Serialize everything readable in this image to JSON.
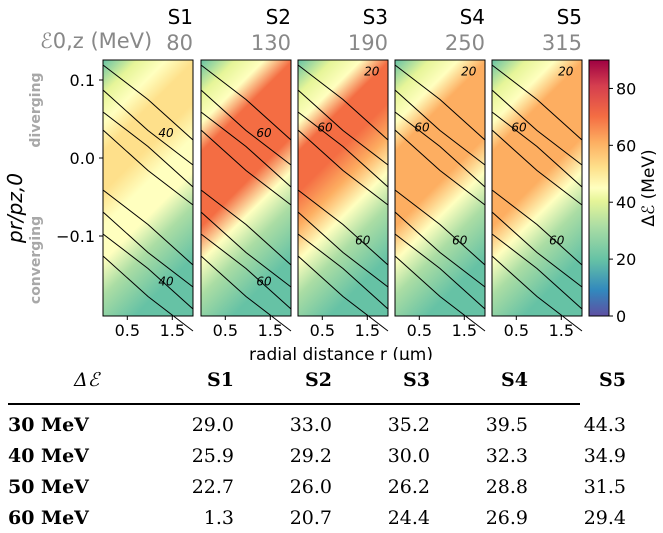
{
  "chart_data": {
    "type": "heatmap",
    "panels": [
      {
        "name": "S1",
        "energy": "80"
      },
      {
        "name": "S2",
        "energy": "130"
      },
      {
        "name": "S3",
        "energy": "190"
      },
      {
        "name": "S4",
        "energy": "250"
      },
      {
        "name": "S5",
        "energy": "315"
      }
    ],
    "energy_label": "ℰ0,z (MeV)",
    "xlabel": "radial distance r (μm)",
    "x_ticks": [
      "0.5",
      "1.5"
    ],
    "ylabel": "pr/pz,0",
    "y_ticks": [
      "0.1",
      "0.0",
      "−0.1"
    ],
    "y_side_labels": [
      "diverging",
      "converging"
    ],
    "colorbar": {
      "label": "Δℰ (MeV)",
      "range": [
        0,
        90
      ],
      "ticks": [
        "0",
        "20",
        "40",
        "60",
        "80"
      ],
      "colormap": [
        "#5e4fa2",
        "#3288bd",
        "#66c2a5",
        "#abdda4",
        "#e6f598",
        "#ffffbf",
        "#fee08b",
        "#fdae61",
        "#f46d43",
        "#d53e4f",
        "#9e0142"
      ]
    },
    "contour_labels": [
      [
        "40",
        "40"
      ],
      [
        "60",
        "60"
      ],
      [
        "20",
        "60",
        "60"
      ],
      [
        "20",
        "60",
        "60"
      ],
      [
        "20",
        "60",
        "60"
      ]
    ],
    "table": {
      "corner": "Δℰ",
      "columns": [
        "S1",
        "S2",
        "S3",
        "S4",
        "S5"
      ],
      "rows": [
        {
          "label": "30 MeV",
          "values": [
            "29.0",
            "33.0",
            "35.2",
            "39.5",
            "44.3"
          ]
        },
        {
          "label": "40 MeV",
          "values": [
            "25.9",
            "29.2",
            "30.0",
            "32.3",
            "34.9"
          ]
        },
        {
          "label": "50 MeV",
          "values": [
            "22.7",
            "26.0",
            "26.2",
            "28.8",
            "31.5"
          ]
        },
        {
          "label": "60 MeV",
          "values": [
            "1.3",
            "20.7",
            "24.4",
            "26.9",
            "29.4"
          ]
        }
      ]
    }
  }
}
